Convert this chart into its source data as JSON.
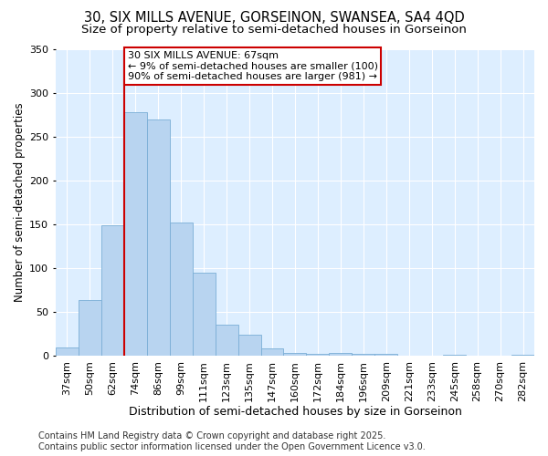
{
  "title1": "30, SIX MILLS AVENUE, GORSEINON, SWANSEA, SA4 4QD",
  "title2": "Size of property relative to semi-detached houses in Gorseinon",
  "xlabel": "Distribution of semi-detached houses by size in Gorseinon",
  "ylabel": "Number of semi-detached properties",
  "categories": [
    "37sqm",
    "50sqm",
    "62sqm",
    "74sqm",
    "86sqm",
    "99sqm",
    "111sqm",
    "123sqm",
    "135sqm",
    "147sqm",
    "160sqm",
    "172sqm",
    "184sqm",
    "196sqm",
    "209sqm",
    "221sqm",
    "233sqm",
    "245sqm",
    "258sqm",
    "270sqm",
    "282sqm"
  ],
  "values": [
    10,
    64,
    149,
    278,
    270,
    152,
    95,
    36,
    24,
    9,
    4,
    2,
    3,
    2,
    2,
    0,
    0,
    1,
    0,
    0,
    1
  ],
  "bar_color": "#b8d4f0",
  "bar_edge_color": "#7aaed6",
  "annotation_text": "30 SIX MILLS AVENUE: 67sqm\n← 9% of semi-detached houses are smaller (100)\n90% of semi-detached houses are larger (981) →",
  "annotation_box_color": "#ffffff",
  "annotation_box_edge": "#cc0000",
  "vline_color": "#cc0000",
  "vline_x_idx": 2,
  "ylim": [
    0,
    350
  ],
  "yticks": [
    0,
    50,
    100,
    150,
    200,
    250,
    300,
    350
  ],
  "background_color": "#ffffff",
  "plot_bg_color": "#ddeeff",
  "grid_color": "#ffffff",
  "footer_line1": "Contains HM Land Registry data © Crown copyright and database right 2025.",
  "footer_line2": "Contains public sector information licensed under the Open Government Licence v3.0.",
  "title1_fontsize": 10.5,
  "title2_fontsize": 9.5,
  "xlabel_fontsize": 9,
  "ylabel_fontsize": 8.5,
  "tick_fontsize": 8,
  "annotation_fontsize": 8,
  "footer_fontsize": 7
}
